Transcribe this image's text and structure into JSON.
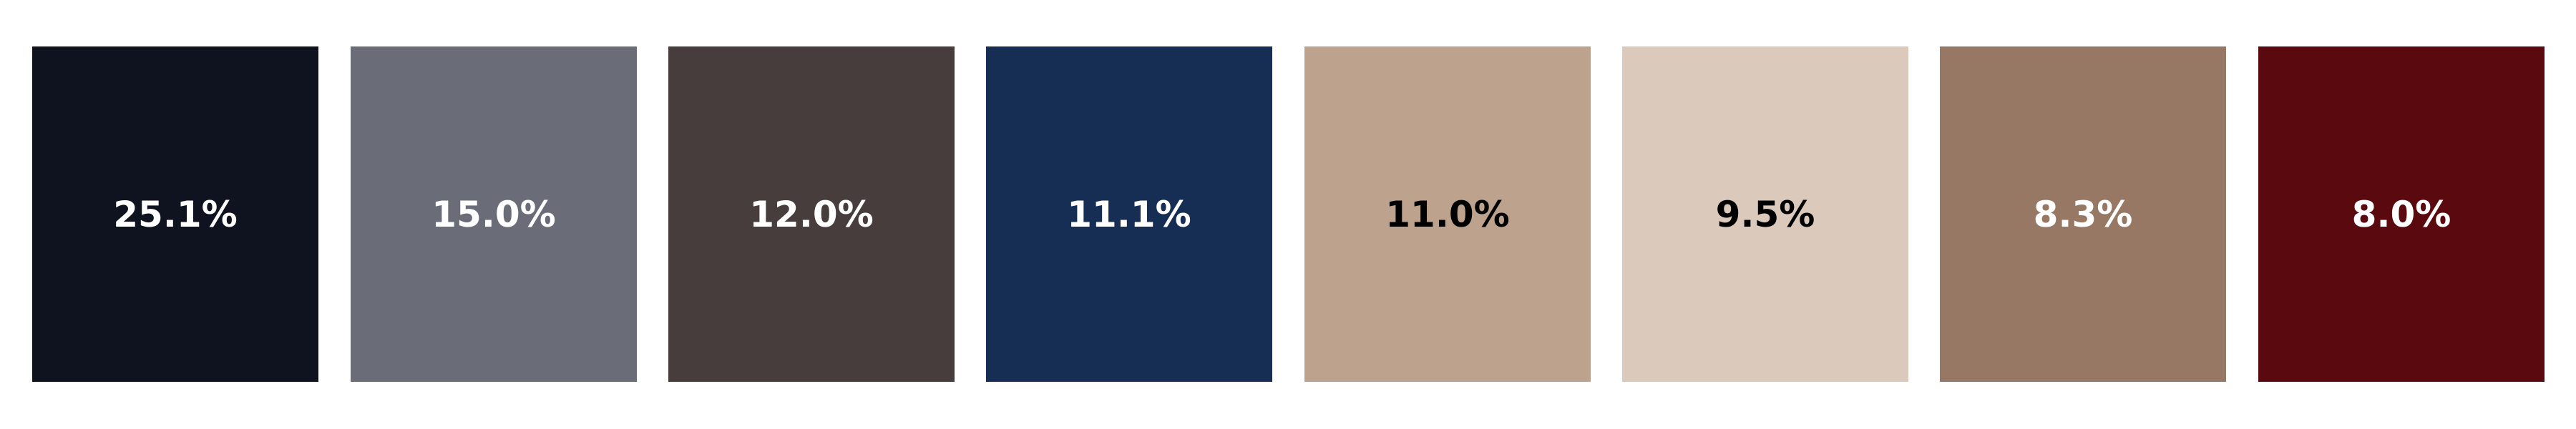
{
  "swatches": [
    {
      "label": "25.1%",
      "share": 25.1,
      "color": "#0f121f",
      "text_color": "#ffffff"
    },
    {
      "label": "15.0%",
      "share": 15.0,
      "color": "#6a6c78",
      "text_color": "#ffffff"
    },
    {
      "label": "12.0%",
      "share": 12.0,
      "color": "#473d3c",
      "text_color": "#ffffff"
    },
    {
      "label": "11.1%",
      "share": 11.1,
      "color": "#162d54",
      "text_color": "#ffffff"
    },
    {
      "label": "11.0%",
      "share": 11.0,
      "color": "#bda28e",
      "text_color": "#000000"
    },
    {
      "label": "9.5%",
      "share": 9.5,
      "color": "#dbc9bc",
      "text_color": "#000000"
    },
    {
      "label": "8.3%",
      "share": 8.3,
      "color": "#977864",
      "text_color": "#ffffff"
    },
    {
      "label": "8.0%",
      "share": 8.0,
      "color": "#5a0a0e",
      "text_color": "#ffffff"
    }
  ]
}
